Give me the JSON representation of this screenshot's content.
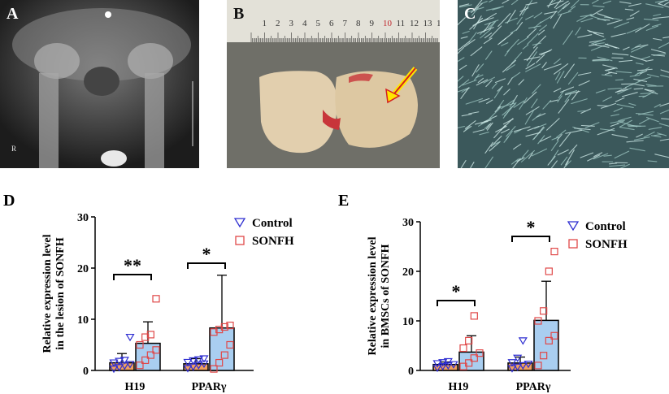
{
  "panels": {
    "A": {
      "label": "A",
      "marker": "R"
    },
    "B": {
      "label": "B",
      "ruler_ticks": [
        "1",
        "2",
        "3",
        "4",
        "5",
        "6",
        "7",
        "8",
        "9",
        "10",
        "11",
        "12",
        "13",
        "14",
        "15"
      ]
    },
    "C": {
      "label": "C"
    }
  },
  "chart_data": [
    {
      "panel": "D",
      "type": "bar",
      "ylabel": "Relative expression level in the lesion of SONFH",
      "ylabel_lines": [
        "Relative expression level",
        "in the lesion of SONFH"
      ],
      "categories": [
        "H19",
        "PPARγ"
      ],
      "ylim": [
        0,
        30
      ],
      "yticks": [
        "0",
        "10",
        "20",
        "30"
      ],
      "legend": {
        "placement": "top-right",
        "entries": [
          "Control",
          "SONFH"
        ]
      },
      "series": [
        {
          "name": "Control",
          "values": [
            1.5,
            1.3
          ],
          "errors": [
            1.8,
            1.0
          ],
          "points": [
            [
              0.3,
              0.6,
              0.9,
              1.2,
              1.5,
              1.8,
              2.0,
              6.5
            ],
            [
              0.4,
              0.7,
              1.0,
              1.3,
              1.6,
              1.9,
              2.1,
              2.3
            ]
          ],
          "color": "#2f2fd1",
          "fill": "#f0a060",
          "marker": "triangle-down"
        },
        {
          "name": "SONFH",
          "values": [
            5.3,
            8.3
          ],
          "errors": [
            4.2,
            10.3
          ],
          "points": [
            [
              1.0,
              2.0,
              3.0,
              4.0,
              5.0,
              6.5,
              7.0,
              14.0
            ],
            [
              0.3,
              1.5,
              3.0,
              5.0,
              7.5,
              8.0,
              8.5,
              8.8
            ]
          ],
          "color": "#e04848",
          "fill": "#a9cef0",
          "marker": "square"
        }
      ],
      "significance": [
        "**",
        "*"
      ]
    },
    {
      "panel": "E",
      "type": "bar",
      "ylabel": "Relative expression level in BMSCs of SONFH",
      "ylabel_lines": [
        "Relative expression level",
        "in BMSCs of SONFH"
      ],
      "categories": [
        "H19",
        "PPARγ"
      ],
      "ylim": [
        0,
        30
      ],
      "yticks": [
        "0",
        "10",
        "20",
        "30"
      ],
      "legend": {
        "placement": "top-right",
        "entries": [
          "Control",
          "SONFH"
        ]
      },
      "series": [
        {
          "name": "Control",
          "values": [
            1.2,
            1.5
          ],
          "errors": [
            0.5,
            1.2
          ],
          "points": [
            [
              0.5,
              0.8,
              1.0,
              1.2,
              1.4,
              1.6,
              1.8
            ],
            [
              0.4,
              0.7,
              1.0,
              1.3,
              1.6,
              2.5,
              6.0
            ]
          ],
          "color": "#2f2fd1",
          "fill": "#f0a060",
          "marker": "triangle-down"
        },
        {
          "name": "SONFH",
          "values": [
            3.7,
            10.1
          ],
          "errors": [
            3.3,
            7.9
          ],
          "points": [
            [
              0.8,
              1.5,
              2.5,
              3.5,
              4.5,
              6.0,
              11.0
            ],
            [
              1.0,
              3.0,
              6.0,
              7.0,
              10.0,
              12.0,
              20.0,
              24.0
            ]
          ],
          "color": "#e04848",
          "fill": "#a9cef0",
          "marker": "square"
        }
      ],
      "significance": [
        "*",
        "*"
      ]
    }
  ]
}
